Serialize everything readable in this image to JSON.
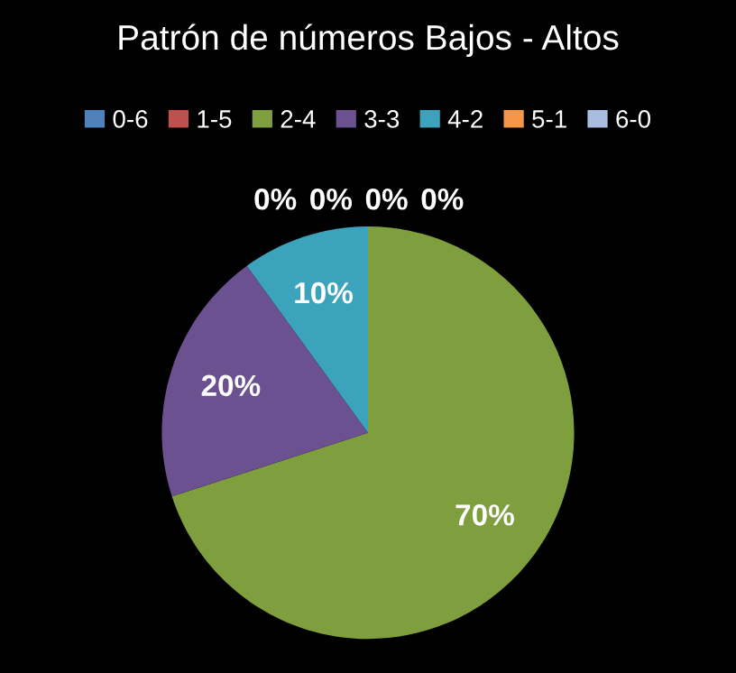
{
  "chart_data": {
    "type": "pie",
    "title": "Patrón de números Bajos - Altos",
    "categories": [
      "0-6",
      "1-5",
      "2-4",
      "3-3",
      "4-2",
      "5-1",
      "6-0"
    ],
    "values": [
      0,
      0,
      70,
      20,
      10,
      0,
      0
    ],
    "value_labels": [
      "0%",
      "0%",
      "70%",
      "20%",
      "10%",
      "0%",
      "0%"
    ],
    "colors": [
      "#4f81bd",
      "#c0504d",
      "#7f9e3e",
      "#6b5190",
      "#3ca3bd",
      "#f79646",
      "#a9bde0"
    ],
    "legend": "top"
  }
}
